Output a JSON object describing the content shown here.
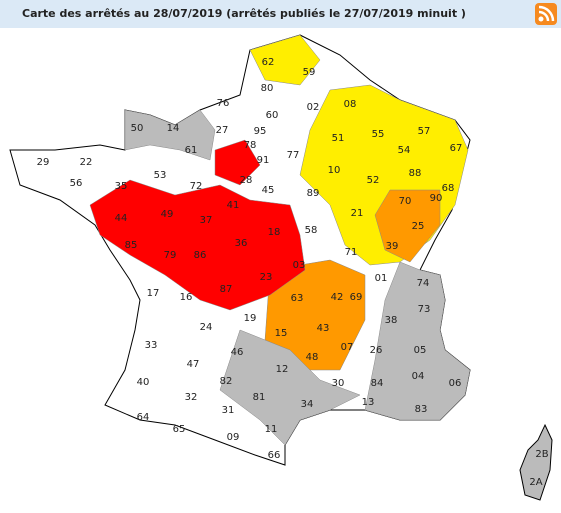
{
  "header": {
    "title": "Carte des arrêtés au 28/07/2019 (arrêtés publiés le 27/07/2019 minuit )"
  },
  "map": {
    "departments": [
      "62",
      "59",
      "80",
      "02",
      "08",
      "76",
      "60",
      "50",
      "14",
      "27",
      "95",
      "55",
      "57",
      "67",
      "51",
      "91",
      "77",
      "61",
      "22",
      "29",
      "56",
      "78",
      "35",
      "53",
      "72",
      "28",
      "10",
      "54",
      "88",
      "52",
      "68",
      "89",
      "45",
      "41",
      "44",
      "49",
      "37",
      "21",
      "70",
      "90",
      "25",
      "18",
      "58",
      "85",
      "79",
      "86",
      "36",
      "71",
      "39",
      "03",
      "17",
      "16",
      "87",
      "23",
      "01",
      "74",
      "63",
      "42",
      "69",
      "73",
      "33",
      "24",
      "19",
      "15",
      "43",
      "38",
      "07",
      "26",
      "05",
      "46",
      "48",
      "47",
      "12",
      "04",
      "06",
      "40",
      "82",
      "81",
      "30",
      "84",
      "83",
      "32",
      "34",
      "13",
      "64",
      "65",
      "31",
      "11",
      "09",
      "66",
      "2B",
      "2A"
    ]
  }
}
